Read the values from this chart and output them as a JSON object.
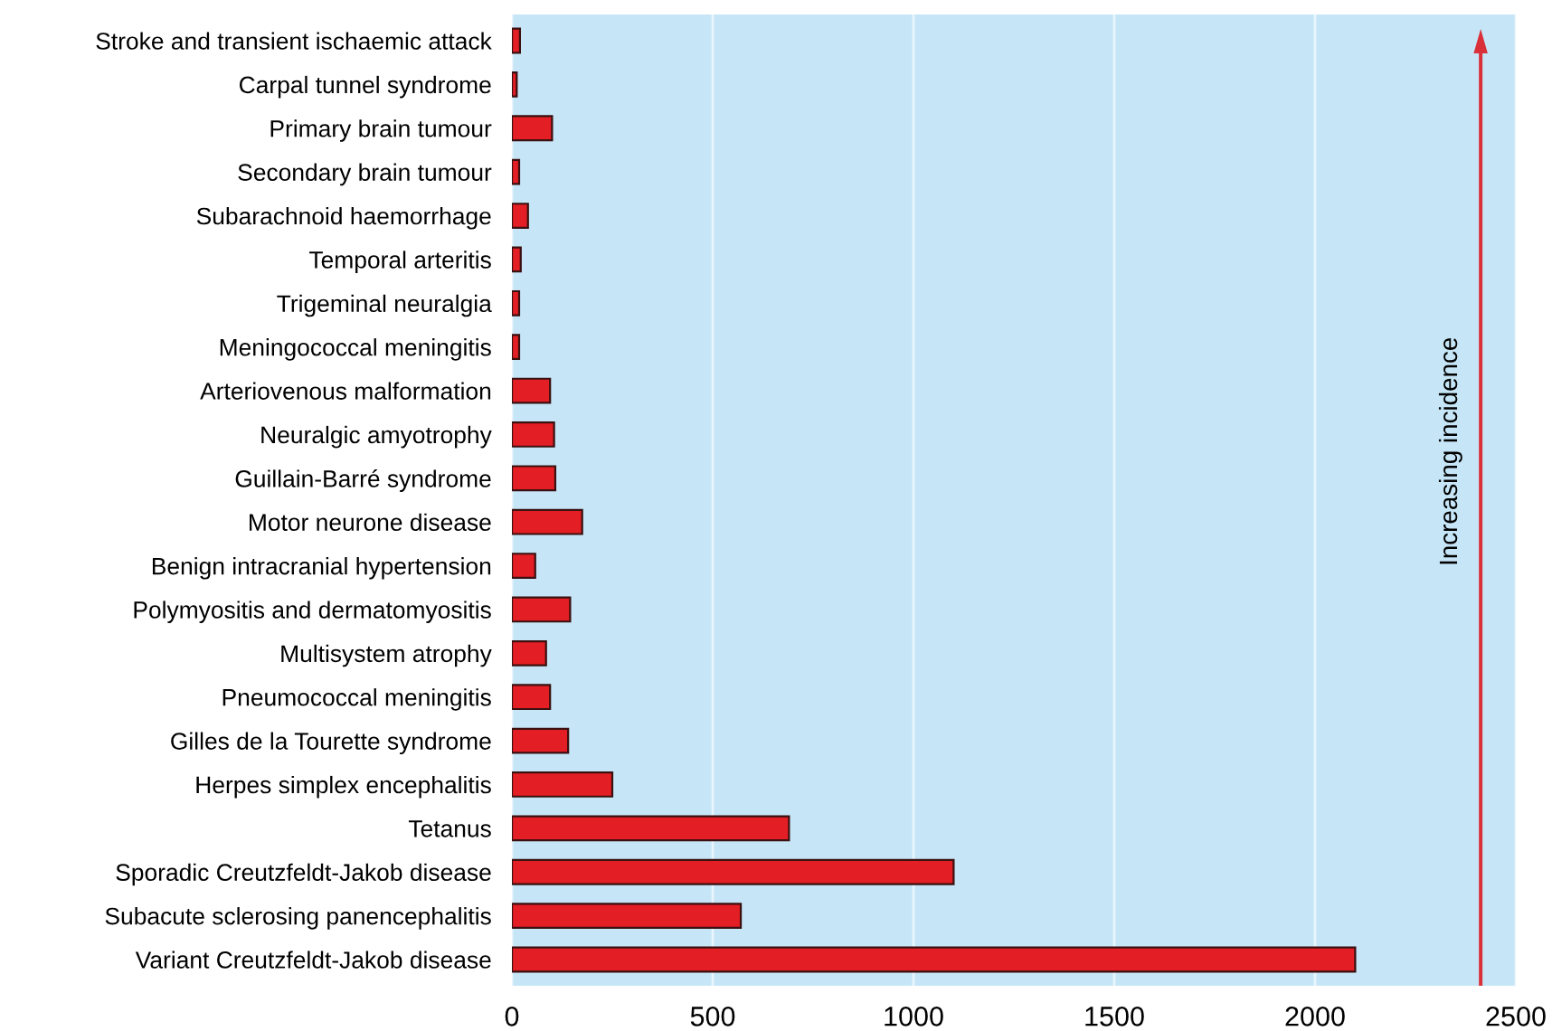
{
  "chart_data": {
    "type": "bar",
    "orientation": "horizontal",
    "categories": [
      "Stroke and transient ischaemic attack",
      "Carpal tunnel syndrome",
      "Primary brain tumour",
      "Secondary brain tumour",
      "Subarachnoid haemorrhage",
      "Temporal arteritis",
      "Trigeminal neuralgia",
      "Meningococcal meningitis",
      "Arteriovenous malformation",
      "Neuralgic amyotrophy",
      "Guillain-Barré syndrome",
      "Motor neurone disease",
      "Benign intracranial hypertension",
      "Polymyositis and dermatomyositis",
      "Multisystem atrophy",
      "Pneumococcal meningitis",
      "Gilles de la Tourette syndrome",
      "Herpes simplex encephalitis",
      "Tetanus",
      "Sporadic Creutzfeldt-Jakob disease",
      "Subacute sclerosing panencephalitis",
      "Variant Creutzfeldt-Jakob disease"
    ],
    "values": [
      20,
      12,
      100,
      18,
      40,
      22,
      18,
      18,
      95,
      105,
      108,
      175,
      58,
      145,
      85,
      95,
      140,
      250,
      690,
      1100,
      570,
      2100
    ],
    "color": "#e31e24",
    "xlim": [
      0,
      2500
    ],
    "xticks": [
      0,
      500,
      1000,
      1500,
      2000,
      2500
    ],
    "grid": "x",
    "annotations": [
      "Increasing incidence"
    ]
  }
}
